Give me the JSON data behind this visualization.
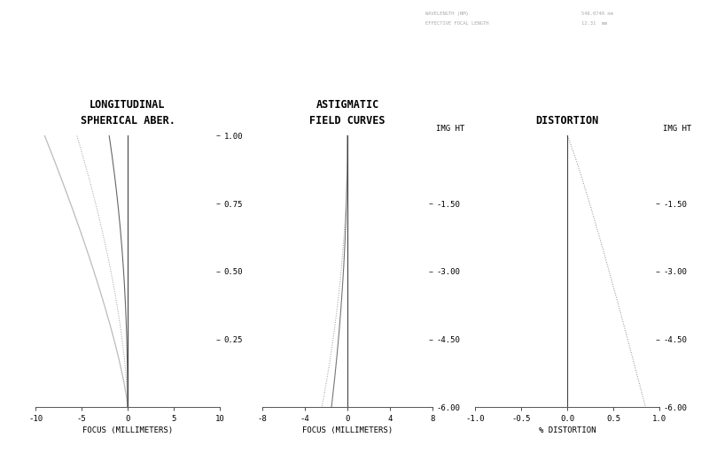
{
  "title1": "LONGITUDINAL\nSPHERICAL ABER.",
  "title2": "ASTIGMATIC\nFIELD CURVES",
  "title3": "DISTORTION",
  "xlabel1": "FOCUS (MILLIMETERS)",
  "xlabel2": "FOCUS (MILLIMETERS)",
  "xlabel3": "% DISTORTION",
  "ylabel_label": "IMG HT",
  "plot1_xlim": [
    -10,
    10
  ],
  "plot2_xlim": [
    -8,
    8
  ],
  "plot3_xlim": [
    -1.0,
    1.0
  ],
  "plot1_ylim": [
    0,
    1.0
  ],
  "plot23_ylim": [
    -6.0,
    0.0
  ],
  "y_ticks1": [
    0.25,
    0.5,
    0.75,
    1.0
  ],
  "img_ht_ticks": [
    -6.0,
    -4.5,
    -3.0,
    -1.5
  ],
  "plot1_xticks": [
    -10,
    -5,
    0,
    5,
    10
  ],
  "plot2_xticks": [
    -8,
    -4,
    0,
    4,
    8
  ],
  "plot3_xticks": [
    -1.0,
    -0.5,
    0.0,
    0.5,
    1.0
  ],
  "background_color": "#ffffff",
  "curve_color1": "#aaaaaa",
  "curve_color2": "#888888",
  "curve_color3": "#555555",
  "annotation_line1": "WAVELENGTH (NM)",
  "annotation_line2": "EFFECTIVE FOCAL LENGTH",
  "annotation_vals1": "546.0740 nm",
  "annotation_vals2": "12.31  mm"
}
